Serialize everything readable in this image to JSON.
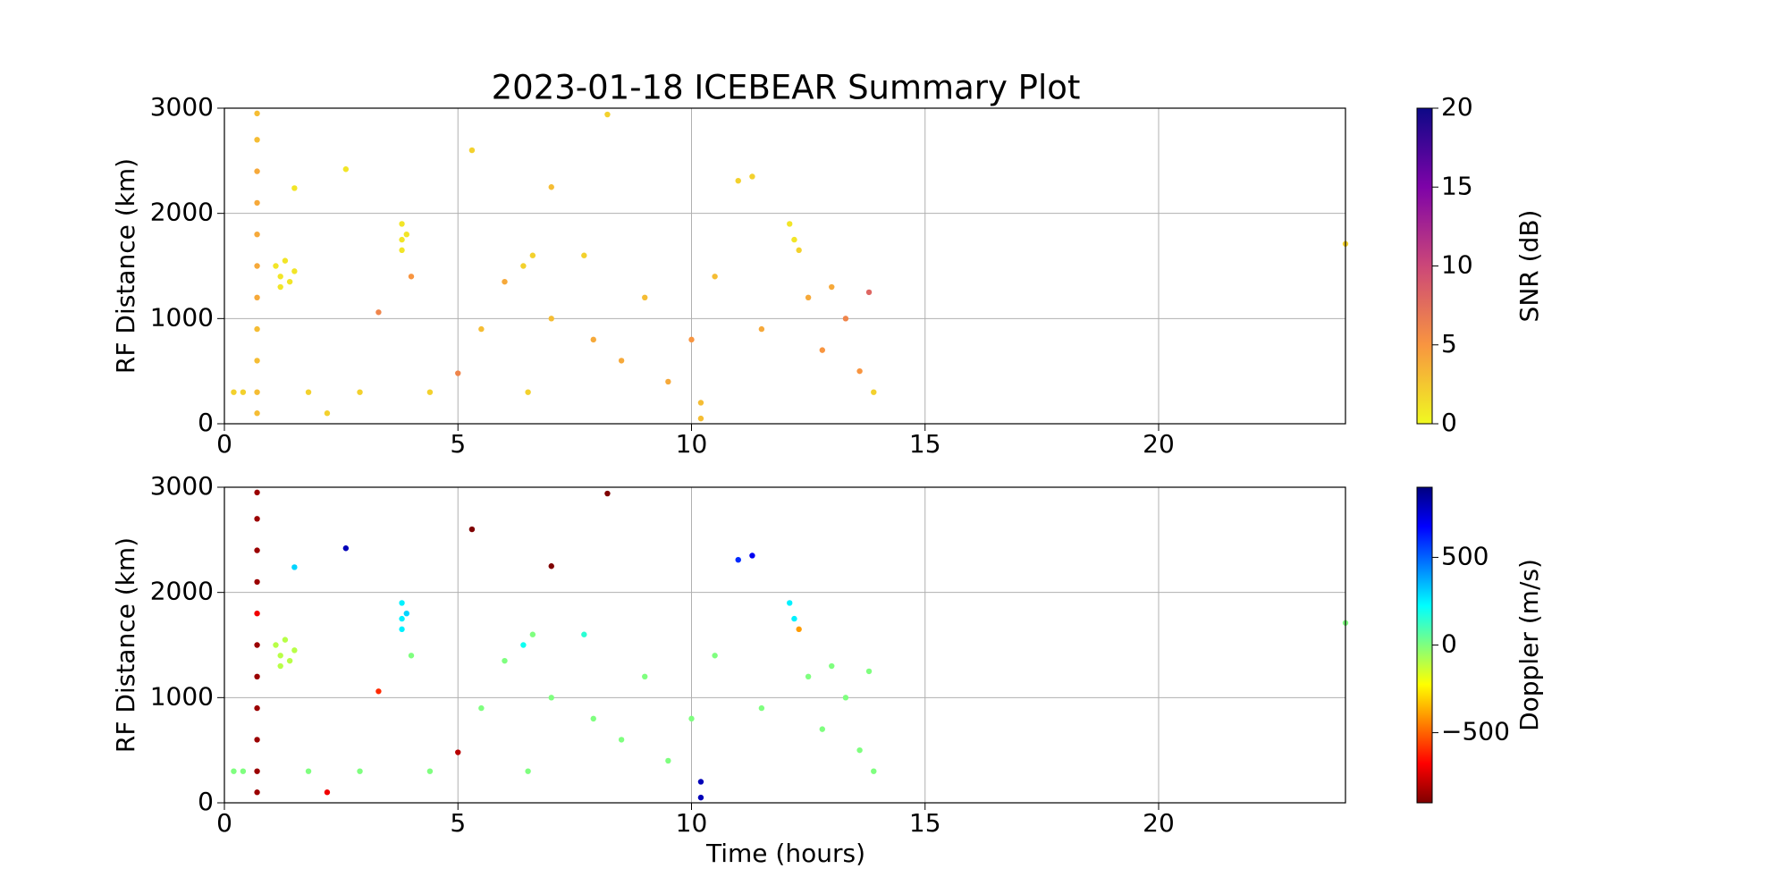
{
  "chart_data": [
    {
      "type": "scatter",
      "title": "2023-01-18 ICEBEAR Summary Plot",
      "ylabel": "RF Distance (km)",
      "colorbar_label": "SNR (dB)",
      "colormap": "plasma_r",
      "clim": [
        0,
        20
      ],
      "cticks": [
        0,
        5,
        10,
        15,
        20
      ],
      "xlim": [
        0,
        24
      ],
      "xticks": [
        0,
        5,
        10,
        15,
        20
      ],
      "ylim": [
        0,
        3000
      ],
      "yticks": [
        0,
        1000,
        2000,
        3000
      ],
      "grid": true,
      "x": [
        0.2,
        0.4,
        0.7,
        0.7,
        0.7,
        0.7,
        0.7,
        0.7,
        0.7,
        0.7,
        0.7,
        0.7,
        0.7,
        1.1,
        1.2,
        1.3,
        1.4,
        1.5,
        1.2,
        1.5,
        1.8,
        2.2,
        2.6,
        2.9,
        3.3,
        3.8,
        3.8,
        3.8,
        3.9,
        4.0,
        4.4,
        5.0,
        5.3,
        5.5,
        6.0,
        6.4,
        6.5,
        6.6,
        7.0,
        7.0,
        7.7,
        7.9,
        8.2,
        8.5,
        9.0,
        9.5,
        10.0,
        10.2,
        10.2,
        10.5,
        11.0,
        11.3,
        11.5,
        12.1,
        12.2,
        12.3,
        12.5,
        12.8,
        13.0,
        13.3,
        13.6,
        13.8,
        13.9,
        24
      ],
      "y": [
        300,
        300,
        2950,
        2700,
        2400,
        2100,
        1800,
        1500,
        1200,
        900,
        600,
        300,
        100,
        1500,
        1400,
        1550,
        1350,
        1450,
        1300,
        2240,
        300,
        100,
        2420,
        300,
        1060,
        1900,
        1750,
        1650,
        1800,
        1400,
        300,
        480,
        2600,
        900,
        1350,
        1500,
        300,
        1600,
        2250,
        1000,
        1600,
        800,
        2940,
        600,
        1200,
        400,
        800,
        200,
        50,
        1400,
        2310,
        2350,
        900,
        1900,
        1750,
        1650,
        1200,
        700,
        1300,
        1000,
        500,
        1250,
        300,
        1710
      ],
      "c": [
        2,
        2,
        3,
        3,
        4,
        4,
        4,
        4,
        4,
        3,
        3,
        3,
        3,
        1,
        1,
        1,
        1,
        1,
        1,
        1,
        2,
        2,
        1,
        2,
        6,
        1,
        1,
        1,
        1,
        5,
        2,
        6,
        2,
        3,
        4,
        2,
        2,
        2,
        3,
        3,
        2,
        4,
        2,
        4,
        3,
        4,
        5,
        3,
        3,
        3,
        2,
        2,
        4,
        1,
        1,
        2,
        4,
        5,
        4,
        6,
        5,
        8,
        2,
        2
      ]
    },
    {
      "type": "scatter",
      "xlabel": "Time (hours)",
      "ylabel": "RF Distance (km)",
      "colorbar_label": "Doppler (m/s)",
      "colormap": "jet_r",
      "clim": [
        -900,
        900
      ],
      "cticks": [
        {
          "value": -500,
          "label": "−500"
        },
        0,
        500
      ],
      "xlim": [
        0,
        24
      ],
      "xticks": [
        0,
        5,
        10,
        15,
        20
      ],
      "ylim": [
        0,
        3000
      ],
      "yticks": [
        0,
        1000,
        2000,
        3000
      ],
      "grid": true,
      "x": [
        0.2,
        0.4,
        0.7,
        0.7,
        0.7,
        0.7,
        0.7,
        0.7,
        0.7,
        0.7,
        0.7,
        0.7,
        0.7,
        1.1,
        1.2,
        1.3,
        1.4,
        1.5,
        1.2,
        1.5,
        1.8,
        2.2,
        2.6,
        2.9,
        3.3,
        3.8,
        3.8,
        3.8,
        3.9,
        4.0,
        4.4,
        5.0,
        5.3,
        5.5,
        6.0,
        6.4,
        6.5,
        6.6,
        7.0,
        7.0,
        7.7,
        7.9,
        8.2,
        8.5,
        9.0,
        9.5,
        10.0,
        10.2,
        10.2,
        10.5,
        11.0,
        11.3,
        11.5,
        12.1,
        12.2,
        12.3,
        12.5,
        12.8,
        13.0,
        13.3,
        13.6,
        13.8,
        13.9,
        24
      ],
      "y": [
        300,
        300,
        2950,
        2700,
        2400,
        2100,
        1800,
        1500,
        1200,
        900,
        600,
        300,
        100,
        1500,
        1400,
        1550,
        1350,
        1450,
        1300,
        2240,
        300,
        100,
        2420,
        300,
        1060,
        1900,
        1750,
        1650,
        1800,
        1400,
        300,
        480,
        2600,
        900,
        1350,
        1500,
        300,
        1600,
        2250,
        1000,
        1600,
        800,
        2940,
        600,
        1200,
        400,
        800,
        200,
        50,
        1400,
        2310,
        2350,
        900,
        1900,
        1750,
        1650,
        1200,
        700,
        1300,
        1000,
        500,
        1250,
        300,
        1710
      ],
      "c": [
        0,
        0,
        -850,
        -850,
        -850,
        -850,
        -700,
        -850,
        -850,
        -850,
        -850,
        -850,
        -850,
        -100,
        -100,
        -100,
        -100,
        -100,
        -100,
        300,
        0,
        -700,
        800,
        0,
        -600,
        250,
        250,
        250,
        300,
        0,
        0,
        -800,
        -900,
        0,
        0,
        200,
        0,
        0,
        -900,
        0,
        150,
        0,
        -900,
        0,
        0,
        0,
        0,
        800,
        800,
        0,
        600,
        700,
        0,
        250,
        250,
        -400,
        0,
        0,
        0,
        0,
        0,
        0,
        0,
        0
      ]
    }
  ]
}
